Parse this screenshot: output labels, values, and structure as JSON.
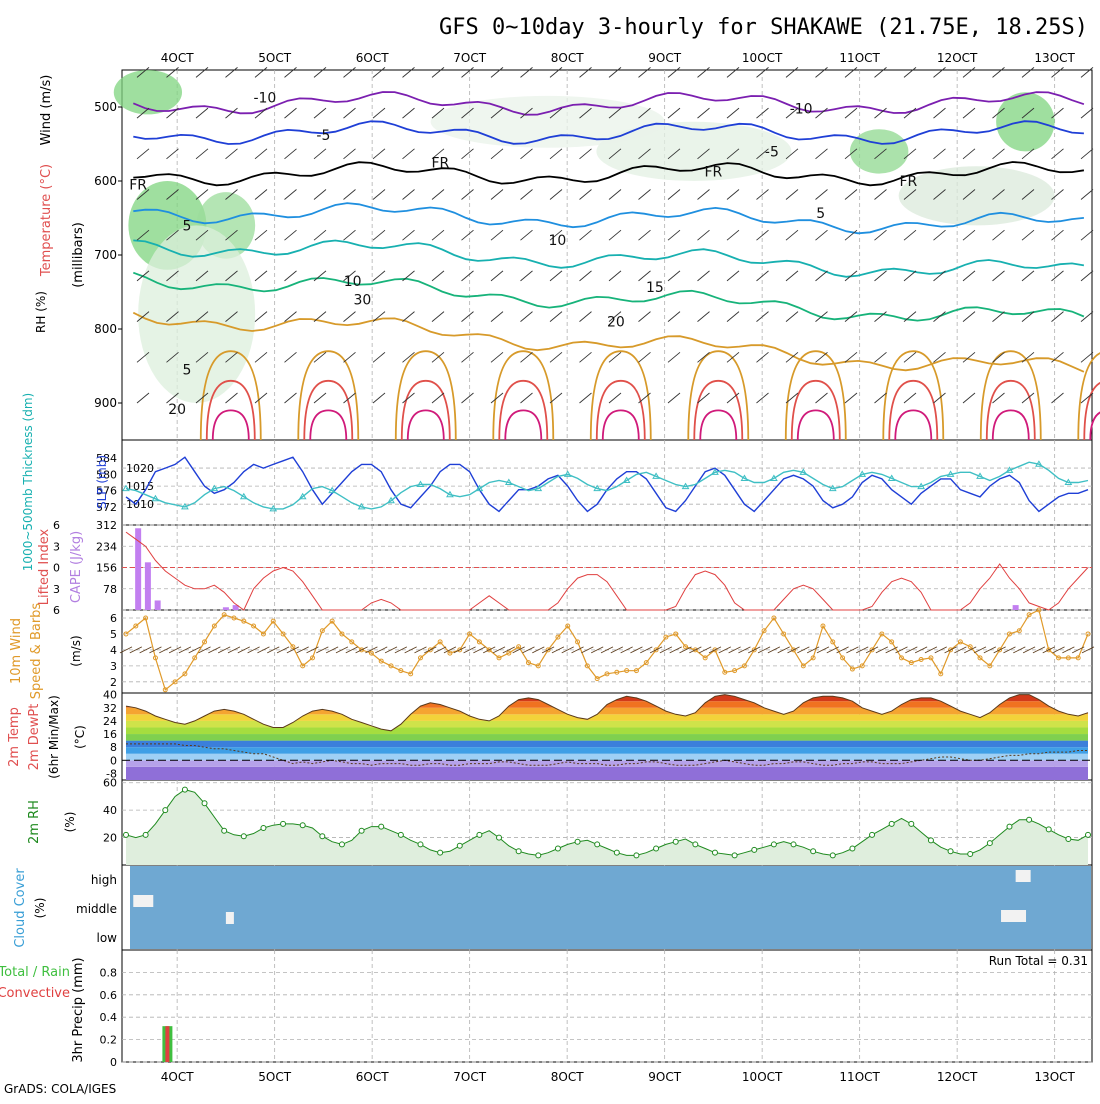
{
  "title": "GFS 0~10day 3-hourly for SHAKAWE (21.75E, 18.25S)",
  "credit": "GrADS: COLA/IGES",
  "colors": {
    "background": "#ffffff",
    "axis": "#000000",
    "grid": "#b4b4b4"
  },
  "date_ticks": [
    "4OCT",
    "5OCT",
    "6OCT",
    "7OCT",
    "8OCT",
    "9OCT",
    "10OCT",
    "11OCT",
    "12OCT",
    "13OCT"
  ],
  "chart_data": [
    {
      "id": "upper_air",
      "type": "contour",
      "ylabels": {
        "wind": "Wind (m/s)",
        "temperature": "Temperature (°C)",
        "rh": "RH (%)",
        "pressure": "(millibars)"
      },
      "yticks": [
        500,
        600,
        700,
        800,
        900
      ],
      "contour_labels": [
        {
          "text": "-10",
          "x": "4.9OCT",
          "p": 487
        },
        {
          "text": "-10",
          "x": "10.4OCT",
          "p": 502
        },
        {
          "text": "-5",
          "x": "5.5OCT",
          "p": 538
        },
        {
          "text": "-5",
          "x": "10.1OCT",
          "p": 560
        },
        {
          "text": "FR",
          "x": "6.7OCT",
          "p": 575
        },
        {
          "text": "FR",
          "x": "9.5OCT",
          "p": 587
        },
        {
          "text": "FR",
          "x": "11.5OCT",
          "p": 600
        },
        {
          "text": "FR",
          "x": "3.6OCT",
          "p": 605
        },
        {
          "text": "5",
          "x": "4.1OCT",
          "p": 660
        },
        {
          "text": "5",
          "x": "10.6OCT",
          "p": 643
        },
        {
          "text": "10",
          "x": "7.9OCT",
          "p": 680
        },
        {
          "text": "10",
          "x": "5.8OCT",
          "p": 735
        },
        {
          "text": "30",
          "x": "5.9OCT",
          "p": 760
        },
        {
          "text": "15",
          "x": "8.9OCT",
          "p": 743
        },
        {
          "text": "20",
          "x": "8.5OCT",
          "p": 790
        },
        {
          "text": "5",
          "x": "4.1OCT",
          "p": 855
        },
        {
          "text": "20",
          "x": "4.0OCT",
          "p": 908
        }
      ]
    },
    {
      "id": "slp_thickness",
      "type": "line",
      "ylabel_left": "1000~500mb Thickness (dm)",
      "ylabel_right": "SLP (mb)",
      "thickness_ticks": [
        572,
        576,
        580,
        584
      ],
      "slp_ticks": [
        1010,
        1015,
        1020
      ],
      "series": [
        {
          "label": "SLP",
          "color": "#1f3fd6",
          "values": [
            1012,
            1010,
            1014,
            1019,
            1020,
            1021,
            1023,
            1019,
            1015,
            1013,
            1014,
            1016,
            1019,
            1021,
            1020,
            1021,
            1022,
            1023,
            1019,
            1014,
            1010,
            1013,
            1016,
            1019,
            1021,
            1021,
            1019,
            1014,
            1010,
            1009,
            1012,
            1015,
            1019,
            1021,
            1021,
            1019,
            1014,
            1010,
            1008,
            1011,
            1014,
            1014,
            1015,
            1017,
            1018,
            1015,
            1011,
            1008,
            1010,
            1014,
            1017,
            1019,
            1019,
            1017,
            1013,
            1009,
            1008,
            1011,
            1015,
            1019,
            1020,
            1018,
            1014,
            1010,
            1008,
            1011,
            1014,
            1017,
            1018,
            1017,
            1015,
            1011,
            1009,
            1010,
            1012,
            1016,
            1018,
            1017,
            1014,
            1012,
            1010,
            1013,
            1015,
            1017,
            1017,
            1014,
            1013,
            1012,
            1015,
            1017,
            1018,
            1016,
            1011,
            1008,
            1010,
            1012,
            1013,
            1013,
            1014
          ]
        },
        {
          "label": "Thickness",
          "color": "#3fbfc4",
          "values": [
            576.5,
            576.0,
            575.0,
            574.0,
            573.0,
            572.5,
            572.0,
            573.0,
            575.0,
            576.5,
            577.0,
            576.0,
            574.5,
            573.0,
            572.0,
            571.5,
            571.5,
            572.5,
            574.5,
            576.5,
            577.0,
            576.0,
            574.5,
            573.0,
            572.0,
            571.5,
            572.0,
            573.5,
            575.5,
            577.0,
            577.5,
            577.5,
            576.5,
            575.0,
            574.5,
            575.0,
            576.5,
            578.0,
            578.5,
            578.0,
            577.0,
            576.0,
            576.5,
            578.0,
            579.5,
            580.0,
            579.0,
            577.5,
            576.5,
            576.0,
            577.0,
            578.5,
            580.0,
            580.5,
            579.5,
            578.5,
            577.5,
            577.0,
            577.5,
            579.0,
            580.5,
            581.0,
            580.5,
            579.0,
            578.0,
            578.0,
            579.0,
            580.5,
            581.0,
            580.5,
            579.0,
            577.5,
            576.5,
            577.0,
            578.5,
            580.0,
            580.5,
            580.0,
            579.0,
            578.0,
            577.0,
            577.0,
            578.0,
            579.5,
            580.0,
            580.5,
            580.5,
            579.5,
            578.5,
            579.5,
            581.0,
            582.0,
            583.0,
            582.5,
            581.0,
            579.0,
            578.0,
            578.0,
            578.5
          ]
        }
      ]
    },
    {
      "id": "cape_li",
      "type": "bar+line",
      "ylabel_left": "Lifted Index",
      "ylabel_right": "CAPE (J/kg)",
      "li_ticks": [
        -6,
        -3,
        0,
        3,
        6
      ],
      "cape_ticks": [
        78,
        156,
        234,
        312
      ],
      "li_ylim": [
        -6,
        6
      ],
      "cape_ylim": [
        0,
        312
      ],
      "cape_values": [
        {
          "x": "3.6OCT",
          "v": 300
        },
        {
          "x": "3.7OCT",
          "v": 175
        },
        {
          "x": "3.8OCT",
          "v": 35
        },
        {
          "x": "4.5OCT",
          "v": 10
        },
        {
          "x": "4.6OCT",
          "v": 18
        },
        {
          "x": "12.6OCT",
          "v": 18
        }
      ],
      "li_values": [
        -5.0,
        -4.0,
        -3.0,
        -1.0,
        0.5,
        1.5,
        2.5,
        3.0,
        3.0,
        2.5,
        3.5,
        5.0,
        6.0,
        3.0,
        1.5,
        0.5,
        0.0,
        0.5,
        2.0,
        4.0,
        6.0,
        7.0,
        7.0,
        7.0,
        6.0,
        5.0,
        4.5,
        5.0,
        6.0,
        7.0,
        7.5,
        7.5,
        7.5,
        7.0,
        6.5,
        6.0,
        5.0,
        4.0,
        5.0,
        6.0,
        7.0,
        8.0,
        8.0,
        7.0,
        5.0,
        3.0,
        1.5,
        1.0,
        1.0,
        2.0,
        4.0,
        6.5,
        8.0,
        8.5,
        8.5,
        7.5,
        5.5,
        3.0,
        1.0,
        0.5,
        1.0,
        2.5,
        5.0,
        7.0,
        7.5,
        7.0,
        6.0,
        4.5,
        3.0,
        2.5,
        3.0,
        4.5,
        6.5,
        8.0,
        8.5,
        7.5,
        5.5,
        3.5,
        2.0,
        1.5,
        2.0,
        3.5,
        6.0,
        7.5,
        7.5,
        7.0,
        5.0,
        3.0,
        1.5,
        -0.5,
        1.5,
        3.0,
        5.0,
        5.5,
        6.0,
        5.0,
        3.0,
        1.5,
        0.0
      ]
    },
    {
      "id": "wind_10m",
      "type": "line",
      "ylabel_left": "10m Wind",
      "ylabel_mid": "Speed & Barbs",
      "ylabel_unit": "(m/s)",
      "yticks": [
        2,
        3,
        4,
        5,
        6
      ],
      "ylim": [
        1.3,
        6.5
      ],
      "series": [
        {
          "label": "Speed",
          "color": "#e09a2a",
          "values": [
            5.0,
            5.5,
            6.0,
            3.5,
            1.5,
            2.0,
            2.5,
            3.5,
            4.5,
            5.5,
            6.2,
            6.0,
            5.8,
            5.5,
            5.0,
            5.8,
            5.0,
            4.2,
            3.0,
            3.5,
            5.2,
            5.8,
            5.0,
            4.5,
            4.0,
            3.8,
            3.3,
            3.0,
            2.7,
            2.5,
            3.5,
            4.0,
            4.5,
            3.8,
            4.0,
            5.0,
            4.5,
            4.0,
            3.5,
            3.8,
            4.2,
            3.2,
            3.0,
            4.0,
            4.8,
            5.5,
            4.5,
            3.0,
            2.2,
            2.5,
            2.6,
            2.7,
            2.7,
            3.2,
            4.0,
            4.8,
            5.0,
            4.2,
            4.0,
            3.5,
            4.0,
            2.6,
            2.7,
            3.0,
            4.0,
            5.2,
            6.0,
            5.0,
            4.0,
            3.0,
            3.5,
            5.5,
            4.5,
            3.5,
            2.8,
            3.0,
            4.0,
            5.0,
            4.5,
            3.5,
            3.2,
            3.4,
            3.5,
            2.5,
            4.0,
            4.5,
            4.2,
            3.5,
            3.0,
            4.0,
            5.0,
            5.2,
            6.2,
            6.5,
            4.0,
            3.5,
            3.5,
            3.5,
            5.0
          ]
        }
      ]
    },
    {
      "id": "temp_2m",
      "type": "area",
      "ylabel_left": "2m Temp",
      "ylabel_mid": "2m DewPt",
      "ylabel_mid2": "(6hr Min/Max)",
      "ylabel_unit": "(°C)",
      "yticks": [
        -8,
        0,
        8,
        16,
        24,
        32,
        40
      ],
      "ylim": [
        -12,
        41
      ],
      "temp_values": [
        33,
        32,
        30,
        27,
        25,
        23,
        22,
        24,
        27,
        30,
        31,
        30,
        28,
        25,
        22,
        20,
        20,
        23,
        27,
        30,
        31,
        30,
        28,
        25,
        23,
        21,
        19,
        18,
        22,
        28,
        33,
        35,
        34,
        32,
        30,
        27,
        25,
        24,
        27,
        33,
        37,
        38,
        37,
        34,
        31,
        28,
        26,
        25,
        28,
        34,
        37,
        39,
        38,
        36,
        33,
        30,
        28,
        27,
        29,
        35,
        39,
        40,
        39,
        37,
        35,
        32,
        30,
        28,
        30,
        35,
        38,
        39,
        39,
        38,
        36,
        32,
        30,
        28,
        30,
        34,
        37,
        38,
        38,
        36,
        33,
        30,
        28,
        26,
        29,
        34,
        38,
        40,
        40,
        37,
        33,
        30,
        28,
        27,
        29
      ],
      "dew_values": [
        10,
        10,
        10,
        10,
        10,
        10,
        9,
        9,
        8,
        7,
        7,
        6,
        5,
        4,
        4,
        2,
        0,
        -2,
        -1,
        -2,
        -1,
        0,
        -1,
        -2,
        -2,
        -3,
        -2,
        -2,
        -2,
        -3,
        -3,
        -2,
        -2,
        -3,
        -3,
        -2,
        -2,
        -2,
        -1,
        -1,
        -2,
        -3,
        -3,
        -3,
        -2,
        -1,
        -2,
        -2,
        -2,
        -3,
        -3,
        -2,
        -2,
        -1,
        -1,
        -2,
        -3,
        -3,
        -3,
        -2,
        -1,
        0,
        -1,
        -2,
        -3,
        -3,
        -2,
        -2,
        -1,
        -1,
        -2,
        -3,
        -3,
        -2,
        -2,
        -1,
        -1,
        -2,
        -2,
        -2,
        -1,
        0,
        1,
        2,
        2,
        1,
        0,
        0,
        1,
        2,
        3,
        3,
        4,
        4,
        5,
        5,
        5,
        6,
        6
      ]
    },
    {
      "id": "rh_2m",
      "type": "area",
      "ylabel_left": "2m RH",
      "ylabel_unit": "(%)",
      "yticks": [
        20,
        40,
        60
      ],
      "ylim": [
        0,
        62
      ],
      "values": [
        22,
        20,
        22,
        30,
        40,
        50,
        55,
        53,
        45,
        35,
        25,
        22,
        21,
        23,
        27,
        29,
        30,
        30,
        29,
        27,
        21,
        17,
        15,
        18,
        25,
        28,
        28,
        25,
        22,
        18,
        15,
        11,
        9,
        10,
        14,
        18,
        22,
        25,
        20,
        14,
        10,
        8,
        7,
        9,
        12,
        15,
        17,
        18,
        15,
        12,
        9,
        7,
        7,
        9,
        12,
        15,
        17,
        19,
        15,
        12,
        9,
        8,
        7,
        9,
        11,
        13,
        15,
        17,
        15,
        13,
        10,
        8,
        7,
        9,
        12,
        17,
        22,
        26,
        30,
        34,
        30,
        24,
        18,
        13,
        10,
        8,
        8,
        11,
        16,
        22,
        28,
        33,
        33,
        30,
        26,
        22,
        19,
        18,
        22
      ]
    },
    {
      "id": "cloud_cover",
      "type": "bar",
      "ylabel_left": "Cloud Cover",
      "ylabel_unit": "(%)",
      "level_labels": [
        "high",
        "middle",
        "low"
      ]
    },
    {
      "id": "precip",
      "type": "bar",
      "ylabel_left": "Total / Rain",
      "ylabel_left2": "Convective",
      "ylabel_mid": "3hr Precip (mm)",
      "yticks": [
        0,
        0.2,
        0.4,
        0.6,
        0.8
      ],
      "ylim": [
        0,
        1.0
      ],
      "run_total": "Run Total = 0.31",
      "bars": [
        {
          "x": "3.9OCT",
          "total": 0.32,
          "convective": 0.32
        }
      ]
    }
  ]
}
